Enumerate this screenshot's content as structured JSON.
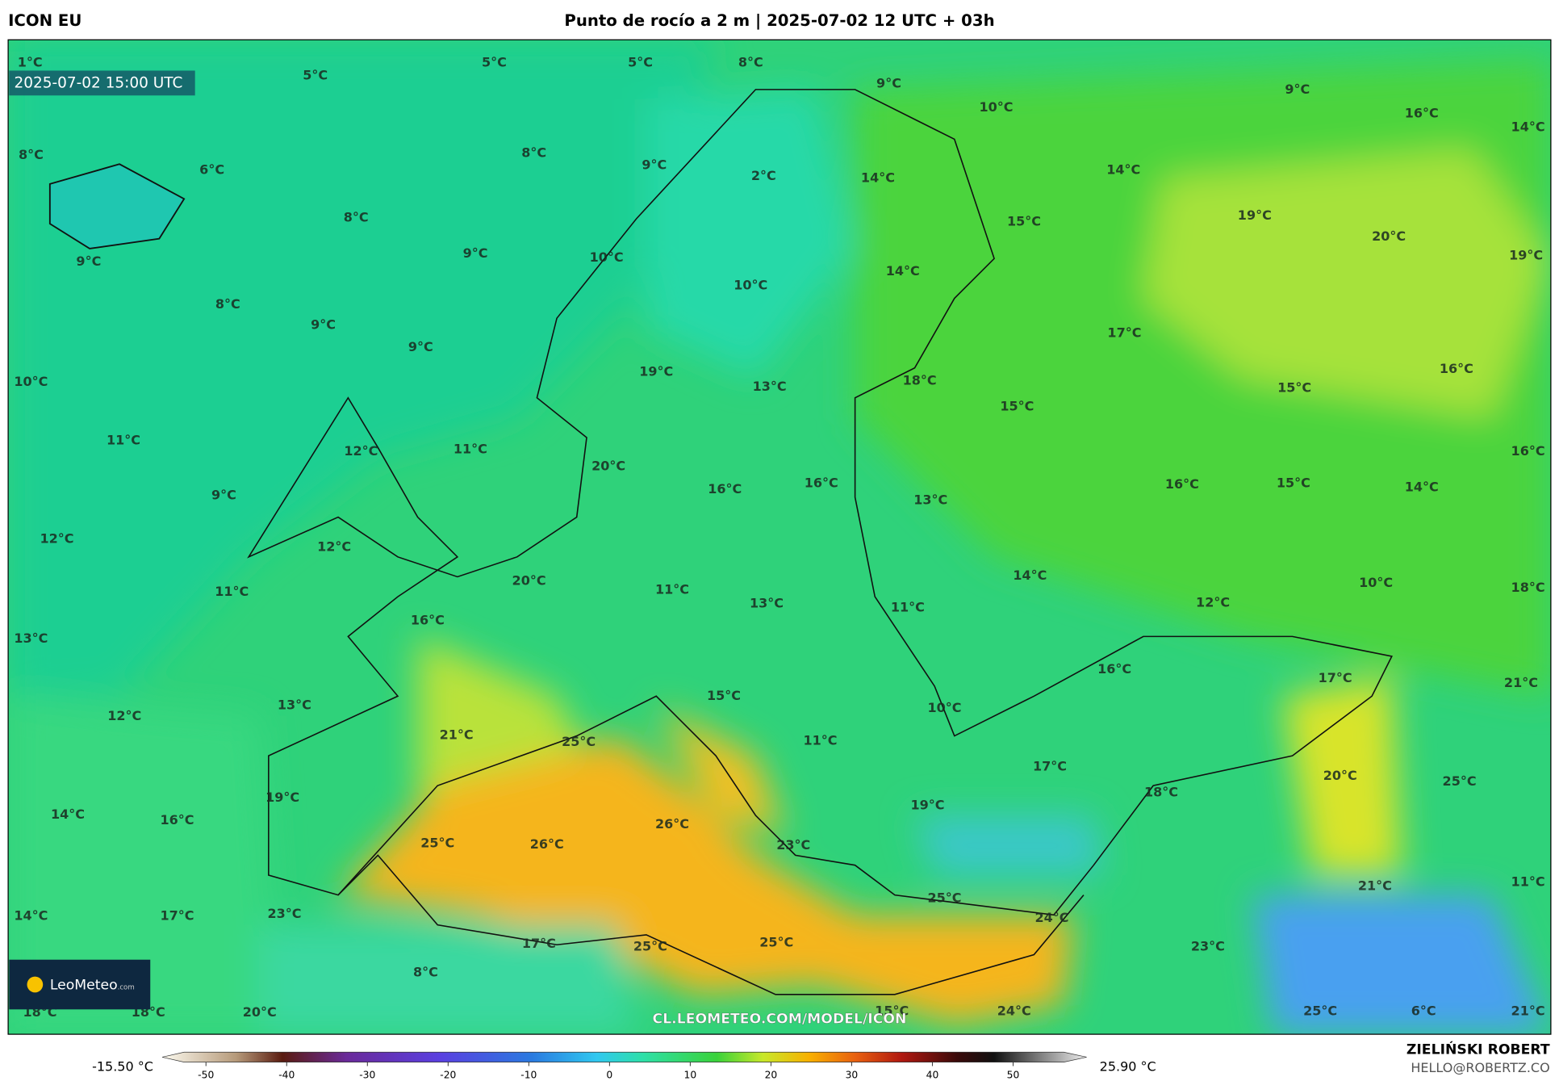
{
  "header": {
    "model": "ICON EU",
    "title": "Punto de rocío a 2 m | 2025-07-02 12 UTC + 03h"
  },
  "map": {
    "timestamp": "2025-07-02 15:00 UTC",
    "watermark": "CL.LEOMETEO.COM/MODEL/ICON",
    "labels": [
      "1°C",
      "5°C",
      "5°C",
      "5°C",
      "8°C",
      "9°C",
      "10°C",
      "9°C",
      "16°C",
      "14°C",
      "8°C",
      "6°C",
      "8°C",
      "9°C",
      "2°C",
      "14°C",
      "14°C",
      "9°C",
      "8°C",
      "9°C",
      "10°C",
      "15°C",
      "19°C",
      "20°C",
      "19°C",
      "14°C",
      "10°C",
      "8°C",
      "9°C",
      "9°C",
      "17°C",
      "10°C",
      "19°C",
      "13°C",
      "18°C",
      "15°C",
      "15°C",
      "16°C",
      "11°C",
      "12°C",
      "11°C",
      "20°C",
      "16°C",
      "9°C",
      "16°C",
      "16°C",
      "13°C",
      "16°C",
      "15°C",
      "14°C",
      "12°C",
      "12°C",
      "20°C",
      "14°C",
      "10°C",
      "18°C",
      "11°C",
      "11°C",
      "13°C",
      "11°C",
      "12°C",
      "13°C",
      "16°C",
      "16°C",
      "17°C",
      "21°C",
      "12°C",
      "13°C",
      "15°C",
      "10°C",
      "21°C",
      "25°C",
      "11°C",
      "17°C",
      "20°C",
      "25°C",
      "19°C",
      "18°C",
      "19°C",
      "14°C",
      "16°C",
      "26°C",
      "25°C",
      "26°C",
      "23°C",
      "21°C",
      "11°C",
      "14°C",
      "17°C",
      "23°C",
      "25°C",
      "24°C",
      "17°C",
      "25°C",
      "25°C",
      "23°C",
      "8°C",
      "18°C",
      "18°C",
      "20°C",
      "15°C",
      "24°C",
      "25°C",
      "6°C",
      "21°C"
    ]
  },
  "logo": {
    "name": "LeoMeteo",
    "suffix": ".com"
  },
  "colorbar": {
    "min_label": "-15.50 °C",
    "max_label": "25.90 °C",
    "ticks": [
      -50,
      -40,
      -30,
      -20,
      -10,
      0,
      10,
      20,
      30,
      40,
      50
    ]
  },
  "footer": {
    "author": "ZIELIŃSKI ROBERT",
    "email": "HELLO@ROBERTZ.CO"
  }
}
